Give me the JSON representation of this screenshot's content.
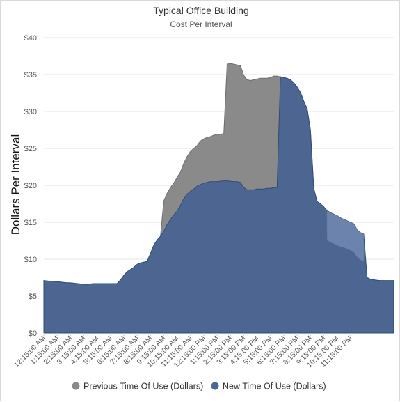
{
  "chart_data": {
    "type": "area",
    "title": "Typical Office Building",
    "subtitle": "Cost Per Interval",
    "ylabel": "Dollars Per Interval",
    "xlabel": "",
    "ylim": [
      0,
      40
    ],
    "y_ticks": [
      0,
      5,
      10,
      15,
      20,
      25,
      30,
      35,
      40
    ],
    "y_tick_labels": [
      "$0",
      "$5",
      "$10",
      "$15",
      "$20",
      "$25",
      "$30",
      "$35",
      "$40"
    ],
    "x_tick_labels": [
      "12:15:00 AM",
      "1:15:00 AM",
      "2:15:00 AM",
      "3:15:00 AM",
      "4:15:00 AM",
      "5:15:00 AM",
      "6:15:00 AM",
      "7:15:00 AM",
      "8:15:00 AM",
      "9:15:00 AM",
      "10:15:00 AM",
      "11:15:00 AM",
      "12:15:00 PM",
      "1:15:00 PM",
      "2:15:00 PM",
      "3:15:00 PM",
      "4:15:00 PM",
      "5:15:00 PM",
      "6:15:00 PM",
      "7:15:00 PM",
      "8:15:00 PM",
      "9:15:00 PM",
      "10:15:00 PM",
      "11:15:00 PM"
    ],
    "x_start_label": "12:15:00 AM",
    "interval_minutes": 15,
    "grid": true,
    "legend_position": "bottom",
    "series": [
      {
        "name": "Previous Time Of Use (Dollars)",
        "color": "#8a8a8a",
        "values": [
          7.1,
          7.05,
          7.0,
          7.0,
          6.95,
          6.9,
          6.85,
          6.8,
          6.8,
          6.75,
          6.7,
          6.65,
          6.6,
          6.6,
          6.65,
          6.7,
          6.7,
          6.7,
          6.7,
          6.7,
          6.7,
          6.7,
          6.7,
          7.2,
          7.8,
          8.3,
          8.6,
          8.9,
          9.3,
          9.5,
          9.6,
          9.7,
          10.8,
          11.9,
          12.6,
          13.1,
          17.9,
          18.9,
          19.7,
          20.3,
          21.1,
          21.8,
          23.0,
          23.9,
          24.6,
          25.0,
          25.4,
          26.0,
          26.3,
          26.5,
          26.6,
          26.8,
          26.9,
          26.9,
          27.0,
          36.4,
          36.5,
          36.4,
          36.3,
          36.2,
          34.9,
          34.3,
          34.2,
          34.3,
          34.4,
          34.5,
          34.5,
          34.5,
          34.6,
          34.8,
          34.8,
          34.7,
          34.6,
          34.5,
          34.3,
          33.9,
          33.3,
          32.6,
          31.4,
          30.4,
          27.5,
          19.6,
          17.8,
          17.5,
          17.1,
          12.6,
          12.3,
          12.1,
          11.9,
          11.7,
          11.6,
          11.4,
          11.2,
          11.0,
          10.3,
          9.9,
          9.7,
          7.5,
          7.3,
          7.2,
          7.15,
          7.1,
          7.1,
          7.1,
          7.1,
          7.1
        ]
      },
      {
        "name": "New Time Of Use (Dollars)",
        "color": "#4a6592",
        "values": [
          7.1,
          7.05,
          7.0,
          7.0,
          6.95,
          6.9,
          6.85,
          6.8,
          6.8,
          6.75,
          6.7,
          6.65,
          6.6,
          6.6,
          6.65,
          6.7,
          6.7,
          6.7,
          6.7,
          6.7,
          6.7,
          6.7,
          6.7,
          7.2,
          7.8,
          8.3,
          8.6,
          8.9,
          9.3,
          9.5,
          9.6,
          9.7,
          10.8,
          11.9,
          12.6,
          13.1,
          13.8,
          14.7,
          15.4,
          16.0,
          16.5,
          17.3,
          18.2,
          18.8,
          19.2,
          19.5,
          19.9,
          20.1,
          20.3,
          20.4,
          20.5,
          20.5,
          20.5,
          20.55,
          20.6,
          20.6,
          20.55,
          20.5,
          20.5,
          20.4,
          19.7,
          19.4,
          19.4,
          19.4,
          19.5,
          19.5,
          19.5,
          19.6,
          19.6,
          19.7,
          19.7,
          34.7,
          34.6,
          34.5,
          34.3,
          33.9,
          33.3,
          32.6,
          31.4,
          30.4,
          27.5,
          19.6,
          17.8,
          17.5,
          17.1,
          16.6,
          16.3,
          16.1,
          15.9,
          15.6,
          15.4,
          15.2,
          15.0,
          14.8,
          14.0,
          13.6,
          13.4,
          7.5,
          7.3,
          7.2,
          7.15,
          7.1,
          7.1,
          7.1,
          7.1,
          7.1
        ]
      }
    ]
  }
}
